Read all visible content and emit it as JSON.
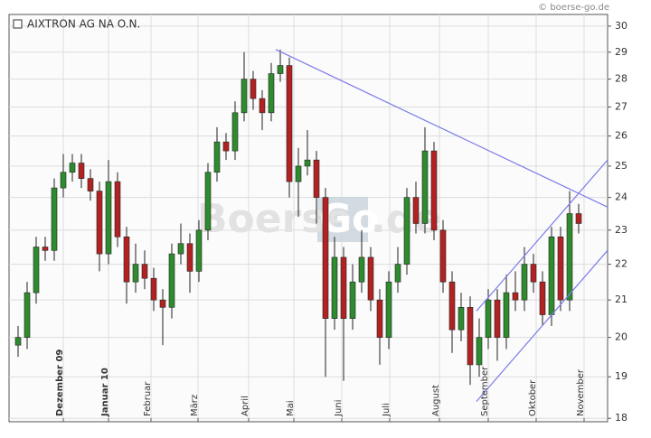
{
  "chart_data": {
    "type": "candlestick",
    "title": "AIXTRON AG NA O.N.",
    "credit": "© boerse-go.de",
    "watermark": [
      "Boerse",
      "Go",
      ".de"
    ],
    "log": true,
    "grid": true,
    "up_color": "#2e8b2e",
    "down_color": "#b22222",
    "trendline_color": "#7b7bea",
    "ylim": [
      17.92,
      30.46
    ],
    "yticks": [
      18,
      19,
      20,
      21,
      22,
      23,
      24,
      25,
      26,
      27,
      28,
      29,
      30
    ],
    "xlim": [
      -1,
      65.2
    ],
    "xticks": [
      {
        "value": 5,
        "label": "Dezember 09",
        "bold": true
      },
      {
        "value": 10,
        "label": "Januar 10",
        "bold": true
      },
      {
        "value": 14.7,
        "label": "Februar"
      },
      {
        "value": 19.9,
        "label": "März"
      },
      {
        "value": 25.5,
        "label": "April"
      },
      {
        "value": 30.5,
        "label": "Mai"
      },
      {
        "value": 35.8,
        "label": "Juni"
      },
      {
        "value": 41.1,
        "label": "Juli"
      },
      {
        "value": 46.6,
        "label": "August"
      },
      {
        "value": 52,
        "label": "September"
      },
      {
        "value": 57.3,
        "label": "Oktober"
      },
      {
        "value": 62.6,
        "label": "November"
      }
    ],
    "open": [
      19.8,
      20.0,
      21.2,
      22.5,
      22.4,
      24.3,
      24.8,
      25.1,
      24.6,
      24.2,
      22.3,
      24.5,
      22.8,
      21.5,
      22.0,
      21.6,
      21.0,
      20.8,
      22.3,
      22.6,
      21.8,
      23.0,
      24.8,
      25.8,
      25.5,
      26.8,
      28.0,
      27.3,
      26.8,
      28.2,
      28.5,
      24.5,
      25.0,
      25.2,
      24.0,
      20.5,
      22.2,
      20.5,
      21.5,
      22.2,
      21.0,
      20.0,
      21.5,
      22.0,
      24.0,
      23.2,
      25.5,
      23.0,
      21.5,
      20.2,
      20.8,
      19.3,
      20.0,
      21.0,
      20.0,
      21.2,
      21.0,
      22.0,
      21.5,
      20.6,
      22.8,
      21.0,
      23.5
    ],
    "high": [
      20.3,
      21.5,
      22.8,
      22.8,
      24.6,
      25.4,
      25.4,
      25.4,
      24.9,
      24.5,
      25.2,
      24.8,
      23.1,
      22.6,
      22.4,
      21.9,
      21.3,
      22.6,
      23.2,
      22.9,
      23.3,
      25.1,
      26.3,
      26.1,
      27.2,
      29.0,
      28.3,
      27.6,
      28.6,
      29.1,
      28.8,
      25.6,
      26.2,
      25.5,
      24.3,
      22.8,
      22.5,
      22.0,
      23.0,
      22.5,
      21.3,
      21.8,
      22.5,
      24.3,
      24.5,
      26.3,
      25.8,
      23.3,
      21.8,
      21.2,
      21.1,
      20.5,
      21.3,
      21.3,
      21.7,
      21.8,
      22.5,
      22.3,
      21.8,
      23.1,
      23.1,
      24.2,
      23.8
    ],
    "low": [
      19.5,
      19.7,
      20.9,
      22.1,
      22.1,
      24.0,
      24.5,
      24.3,
      23.9,
      21.8,
      22.0,
      22.5,
      20.9,
      21.2,
      21.3,
      20.7,
      19.8,
      20.5,
      22.0,
      21.2,
      21.5,
      22.7,
      24.5,
      25.2,
      25.2,
      26.5,
      26.9,
      26.2,
      26.5,
      27.9,
      24.0,
      23.4,
      24.7,
      23.2,
      19.0,
      20.2,
      18.9,
      20.2,
      21.2,
      20.7,
      19.3,
      19.7,
      21.2,
      21.7,
      22.9,
      22.9,
      22.7,
      21.2,
      19.6,
      19.9,
      18.8,
      19.0,
      19.7,
      19.4,
      19.7,
      20.7,
      20.7,
      21.2,
      20.3,
      20.3,
      20.7,
      20.7,
      22.9
    ],
    "close": [
      20.0,
      21.2,
      22.5,
      22.4,
      24.3,
      24.8,
      25.1,
      24.6,
      24.2,
      22.3,
      24.5,
      22.8,
      21.5,
      22.0,
      21.6,
      21.0,
      20.8,
      22.3,
      22.6,
      21.8,
      23.0,
      24.8,
      25.8,
      25.5,
      26.8,
      28.0,
      27.3,
      26.8,
      28.2,
      28.5,
      24.5,
      25.0,
      25.2,
      24.0,
      20.5,
      22.2,
      20.5,
      21.5,
      22.2,
      21.0,
      20.0,
      21.5,
      22.0,
      24.0,
      23.2,
      25.5,
      23.0,
      21.5,
      20.2,
      20.8,
      19.3,
      20.0,
      21.0,
      20.0,
      21.2,
      21.0,
      22.0,
      21.5,
      20.6,
      22.8,
      21.0,
      23.5,
      23.2
    ],
    "trendlines": [
      [
        [
          28.5,
          29.1
        ],
        [
          65.2,
          23.7
        ]
      ],
      [
        [
          50.7,
          18.4
        ],
        [
          65.2,
          22.4
        ]
      ],
      [
        [
          50.7,
          20.7
        ],
        [
          65.2,
          25.2
        ]
      ]
    ]
  }
}
